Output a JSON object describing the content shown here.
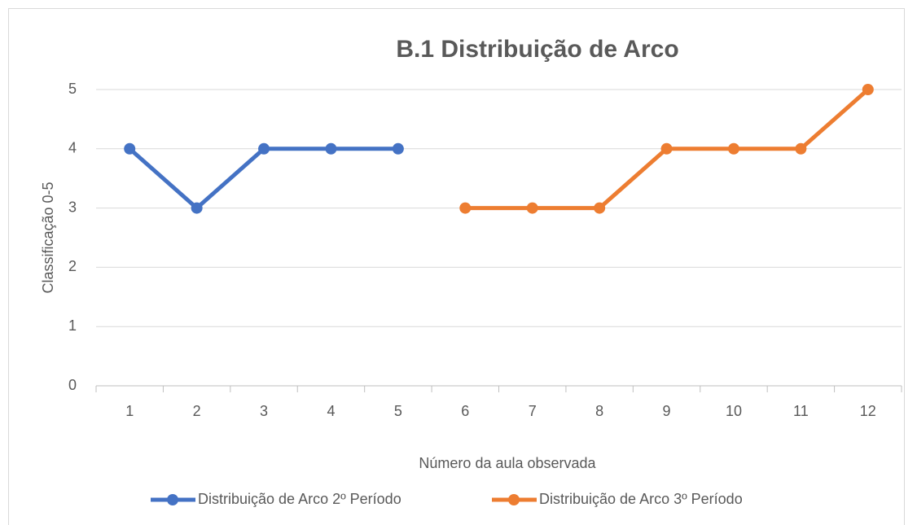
{
  "chart_data": {
    "type": "line",
    "title": "B.1 Distribuição de Arco",
    "x_label": "Número da aula observada",
    "y_label": "Classificação 0-5",
    "categories": [
      "1",
      "2",
      "3",
      "4",
      "5",
      "6",
      "7",
      "8",
      "9",
      "10",
      "11",
      "12"
    ],
    "series": [
      {
        "name": "Distribuição de Arco 2º Período",
        "color": "#4472c4",
        "values": [
          4,
          3,
          4,
          4,
          4,
          null,
          null,
          null,
          null,
          null,
          null,
          null
        ]
      },
      {
        "name": "Distribuição de Arco 3º Período",
        "color": "#ed7d31",
        "values": [
          null,
          null,
          null,
          null,
          null,
          3,
          3,
          3,
          4,
          4,
          4,
          5
        ]
      }
    ],
    "ylim": [
      0,
      5
    ],
    "yticks": [
      0,
      1,
      2,
      3,
      4,
      5
    ],
    "grid": true,
    "legend": "bottom"
  }
}
